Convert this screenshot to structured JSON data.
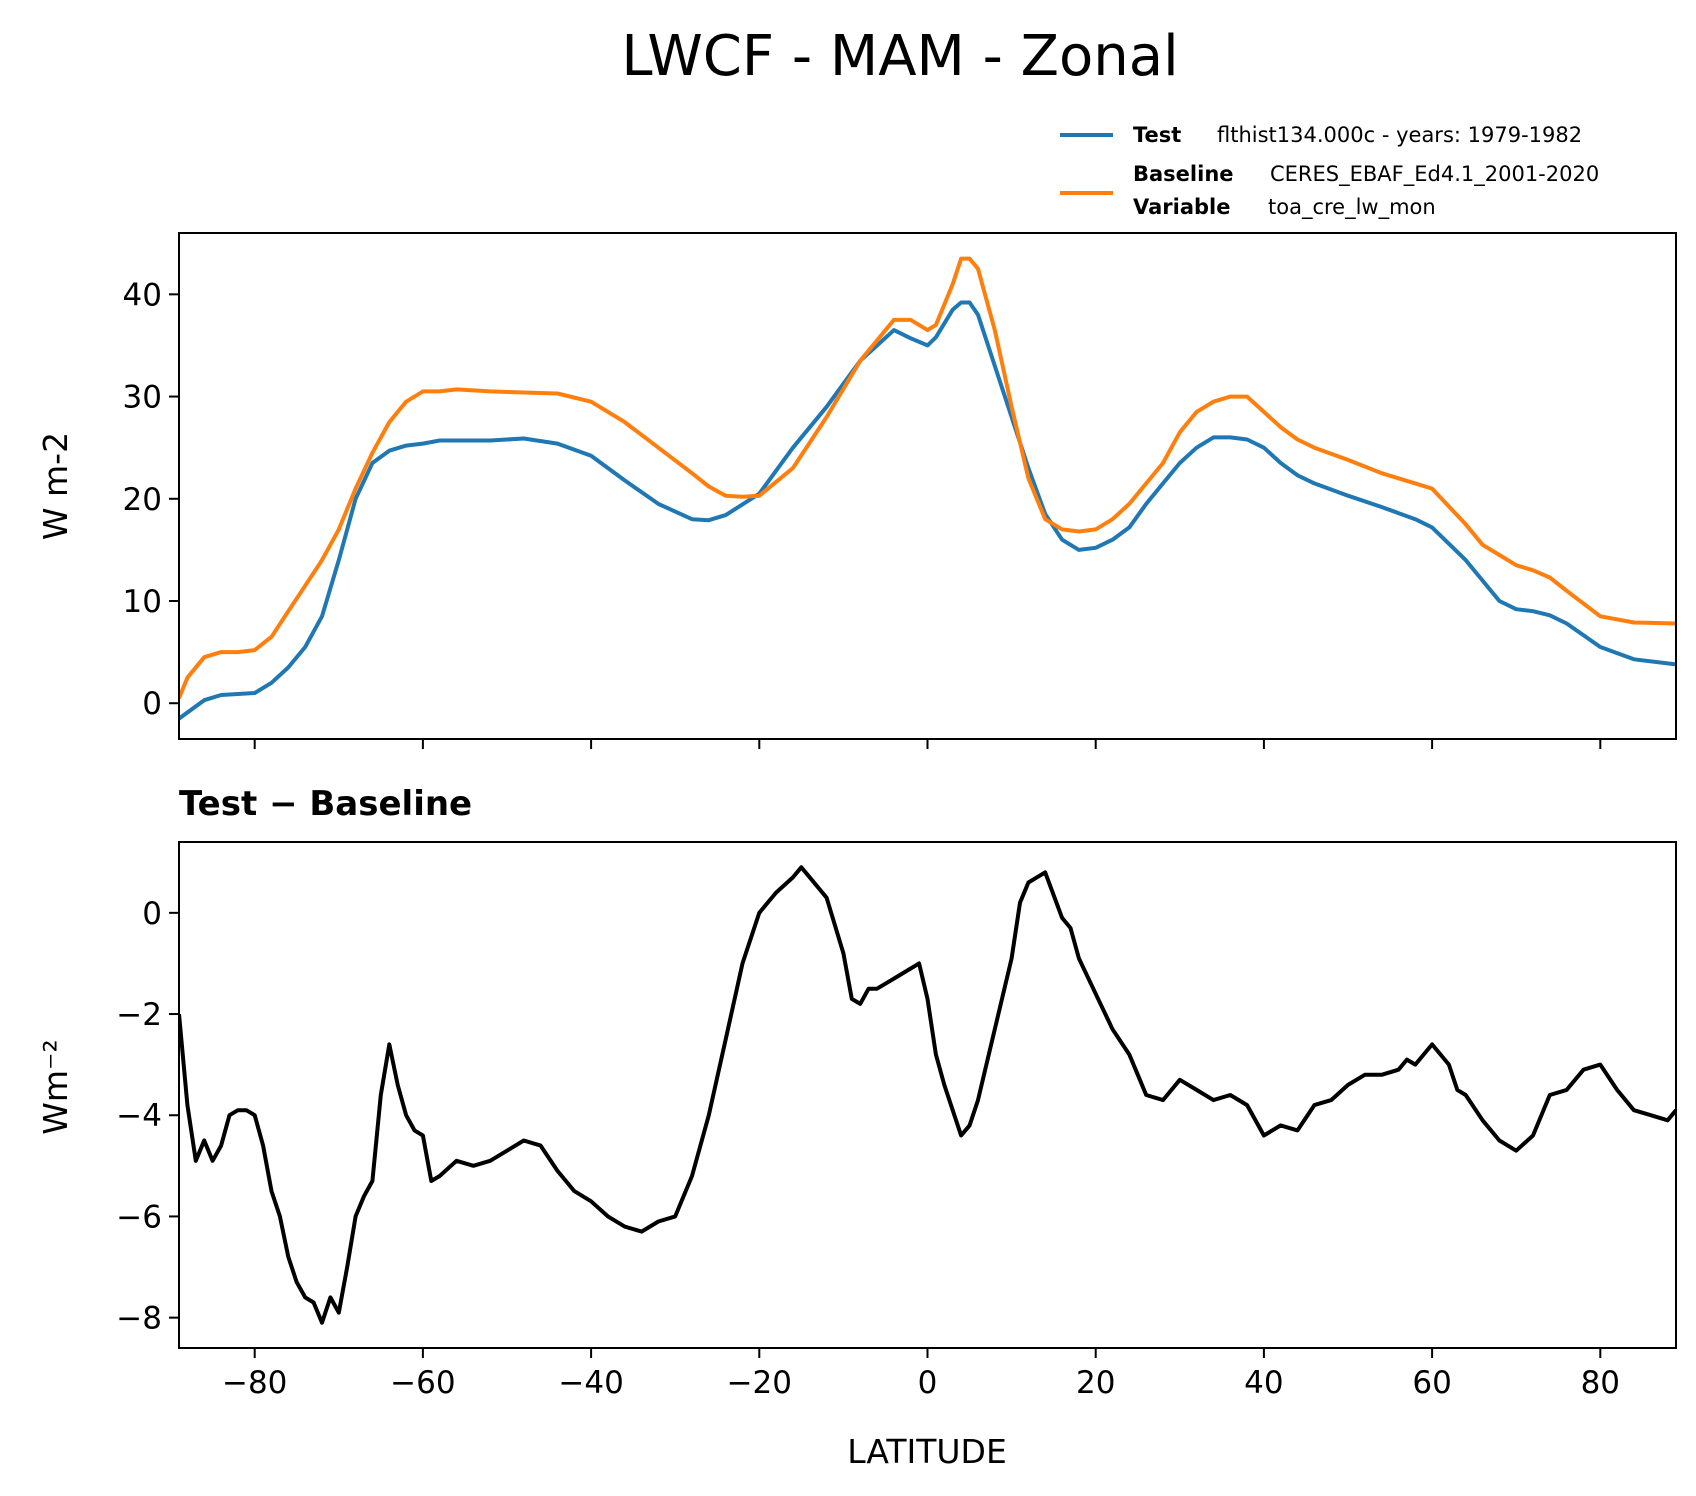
{
  "figure": {
    "title": "LWCF - MAM - Zonal",
    "diff_title": "Test − Baseline",
    "xlabel": "LATITUDE"
  },
  "legend": {
    "test_key": "Test",
    "test_value": "flthist134.000c - years: 1979-1982",
    "baseline_key": "Baseline",
    "baseline_value": "CERES_EBAF_Ed4.1_2001-2020",
    "variable_key": "Variable",
    "variable_value": "toa_cre_lw_mon"
  },
  "chart_data": [
    {
      "type": "line",
      "ylabel": "W m-2",
      "xlim": [
        -89,
        89
      ],
      "ylim": [
        -3.5,
        46
      ],
      "xticks": [
        -80,
        -60,
        -40,
        -20,
        0,
        20,
        40,
        60,
        80
      ],
      "yticks": [
        0,
        10,
        20,
        30,
        40
      ],
      "ytick_labels": [
        "0",
        "10",
        "20",
        "30",
        "40"
      ],
      "series": [
        {
          "name": "Test",
          "color": "#1f77b4",
          "x": [
            -89,
            -86,
            -84,
            -82,
            -80,
            -78,
            -76,
            -74,
            -72,
            -70,
            -68,
            -66,
            -64,
            -62,
            -60,
            -58,
            -56,
            -52,
            -48,
            -44,
            -40,
            -36,
            -32,
            -28,
            -26,
            -24,
            -20,
            -16,
            -12,
            -8,
            -4,
            -2,
            0,
            1,
            3,
            4,
            5,
            6,
            8,
            10,
            12,
            14,
            16,
            18,
            20,
            22,
            24,
            26,
            28,
            30,
            32,
            34,
            36,
            38,
            40,
            42,
            44,
            46,
            50,
            54,
            58,
            60,
            64,
            66,
            68,
            70,
            72,
            74,
            76,
            80,
            84,
            89
          ],
          "y": [
            -1.5,
            0.3,
            0.8,
            0.9,
            1.0,
            2.0,
            3.5,
            5.5,
            8.5,
            14.0,
            20.0,
            23.5,
            24.7,
            25.2,
            25.4,
            25.7,
            25.7,
            25.7,
            25.9,
            25.4,
            24.2,
            21.8,
            19.5,
            18.0,
            17.9,
            18.4,
            20.5,
            25.0,
            29.0,
            33.5,
            36.5,
            35.7,
            35.0,
            35.8,
            38.5,
            39.2,
            39.2,
            38.0,
            33.0,
            28.0,
            23.0,
            18.5,
            16.0,
            15.0,
            15.2,
            16.0,
            17.2,
            19.5,
            21.5,
            23.5,
            25.0,
            26.0,
            26.0,
            25.8,
            25.0,
            23.5,
            22.3,
            21.5,
            20.3,
            19.2,
            18.0,
            17.2,
            14.0,
            12.0,
            10.0,
            9.2,
            9.0,
            8.6,
            7.8,
            5.5,
            4.3,
            3.8
          ]
        },
        {
          "name": "Baseline",
          "color": "#ff7f0e",
          "x": [
            -89,
            -88,
            -86,
            -84,
            -82,
            -80,
            -78,
            -76,
            -74,
            -72,
            -70,
            -68,
            -66,
            -64,
            -62,
            -60,
            -58,
            -56,
            -52,
            -48,
            -44,
            -40,
            -36,
            -32,
            -28,
            -26,
            -24,
            -22,
            -20,
            -16,
            -12,
            -8,
            -4,
            -2,
            0,
            1,
            3,
            4,
            5,
            6,
            8,
            10,
            12,
            14,
            16,
            18,
            20,
            22,
            24,
            26,
            28,
            30,
            32,
            34,
            36,
            38,
            40,
            42,
            44,
            46,
            50,
            54,
            58,
            60,
            64,
            66,
            68,
            70,
            72,
            74,
            76,
            80,
            84,
            89
          ],
          "y": [
            0.5,
            2.5,
            4.5,
            5.0,
            5.0,
            5.2,
            6.5,
            9.0,
            11.5,
            14.0,
            17.0,
            21.0,
            24.5,
            27.5,
            29.5,
            30.5,
            30.5,
            30.7,
            30.5,
            30.4,
            30.3,
            29.5,
            27.5,
            25.0,
            22.5,
            21.2,
            20.3,
            20.2,
            20.3,
            23.0,
            28.0,
            33.5,
            37.5,
            37.5,
            36.5,
            37.0,
            41.0,
            43.5,
            43.5,
            42.5,
            36.5,
            29.0,
            22.0,
            18.0,
            17.0,
            16.8,
            17.0,
            18.0,
            19.5,
            21.5,
            23.5,
            26.5,
            28.5,
            29.5,
            30.0,
            30.0,
            28.5,
            27.0,
            25.8,
            25.0,
            23.8,
            22.5,
            21.5,
            21.0,
            17.5,
            15.5,
            14.5,
            13.5,
            13.0,
            12.3,
            11.0,
            8.5,
            7.9,
            7.8
          ]
        }
      ]
    },
    {
      "type": "line",
      "title": "Test − Baseline",
      "ylabel": "Wm⁻²",
      "xlabel": "LATITUDE",
      "xlim": [
        -89,
        89
      ],
      "ylim": [
        -8.6,
        1.4
      ],
      "xticks": [
        -80,
        -60,
        -40,
        -20,
        0,
        20,
        40,
        60,
        80
      ],
      "xtick_labels": [
        "−80",
        "−60",
        "−40",
        "−20",
        "0",
        "20",
        "40",
        "60",
        "80"
      ],
      "yticks": [
        -8,
        -6,
        -4,
        -2,
        0
      ],
      "ytick_labels": [
        "−8",
        "−6",
        "−4",
        "−2",
        "0"
      ],
      "series": [
        {
          "name": "Test − Baseline",
          "color": "#000000",
          "x": [
            -89,
            -88,
            -87,
            -86,
            -85,
            -84,
            -83,
            -82,
            -81,
            -80,
            -79,
            -78,
            -77,
            -76,
            -75,
            -74,
            -73,
            -72,
            -71,
            -70,
            -69,
            -68,
            -67,
            -66,
            -65,
            -64,
            -63,
            -62,
            -61,
            -60,
            -59,
            -58,
            -56,
            -54,
            -52,
            -50,
            -48,
            -46,
            -44,
            -42,
            -40,
            -38,
            -36,
            -34,
            -32,
            -30,
            -28,
            -26,
            -24,
            -22,
            -20,
            -18,
            -16,
            -15,
            -14,
            -12,
            -10,
            -9,
            -8,
            -7,
            -6,
            -4,
            -2,
            -1,
            0,
            1,
            2,
            4,
            5,
            6,
            7,
            8,
            10,
            11,
            12,
            13,
            14,
            16,
            17,
            18,
            20,
            22,
            24,
            25,
            26,
            28,
            30,
            32,
            34,
            36,
            38,
            40,
            42,
            44,
            46,
            48,
            50,
            52,
            54,
            56,
            57,
            58,
            60,
            62,
            63,
            64,
            66,
            68,
            70,
            72,
            74,
            76,
            78,
            80,
            82,
            84,
            86,
            88,
            89
          ],
          "y": [
            -2.0,
            -3.8,
            -4.9,
            -4.5,
            -4.9,
            -4.6,
            -4.0,
            -3.9,
            -3.9,
            -4.0,
            -4.6,
            -5.5,
            -6.0,
            -6.8,
            -7.3,
            -7.6,
            -7.7,
            -8.1,
            -7.6,
            -7.9,
            -7.0,
            -6.0,
            -5.6,
            -5.3,
            -3.6,
            -2.6,
            -3.4,
            -4.0,
            -4.3,
            -4.4,
            -5.3,
            -5.2,
            -4.9,
            -5.0,
            -4.9,
            -4.7,
            -4.5,
            -4.6,
            -5.1,
            -5.5,
            -5.7,
            -6.0,
            -6.2,
            -6.3,
            -6.1,
            -6.0,
            -5.2,
            -4.0,
            -2.5,
            -1.0,
            0.0,
            0.4,
            0.7,
            0.9,
            0.7,
            0.3,
            -0.8,
            -1.7,
            -1.8,
            -1.5,
            -1.5,
            -1.3,
            -1.1,
            -1.0,
            -1.7,
            -2.8,
            -3.4,
            -4.4,
            -4.2,
            -3.7,
            -3.0,
            -2.3,
            -0.9,
            0.2,
            0.6,
            0.7,
            0.8,
            -0.1,
            -0.3,
            -0.9,
            -1.6,
            -2.3,
            -2.8,
            -3.2,
            -3.6,
            -3.7,
            -3.3,
            -3.5,
            -3.7,
            -3.6,
            -3.8,
            -4.4,
            -4.2,
            -4.3,
            -3.8,
            -3.7,
            -3.4,
            -3.2,
            -3.2,
            -3.1,
            -2.9,
            -3.0,
            -2.6,
            -3.0,
            -3.5,
            -3.6,
            -4.1,
            -4.5,
            -4.7,
            -4.4,
            -3.6,
            -3.5,
            -3.1,
            -3.0,
            -3.5,
            -3.9,
            -4.0,
            -4.1,
            -3.9
          ]
        }
      ]
    }
  ]
}
